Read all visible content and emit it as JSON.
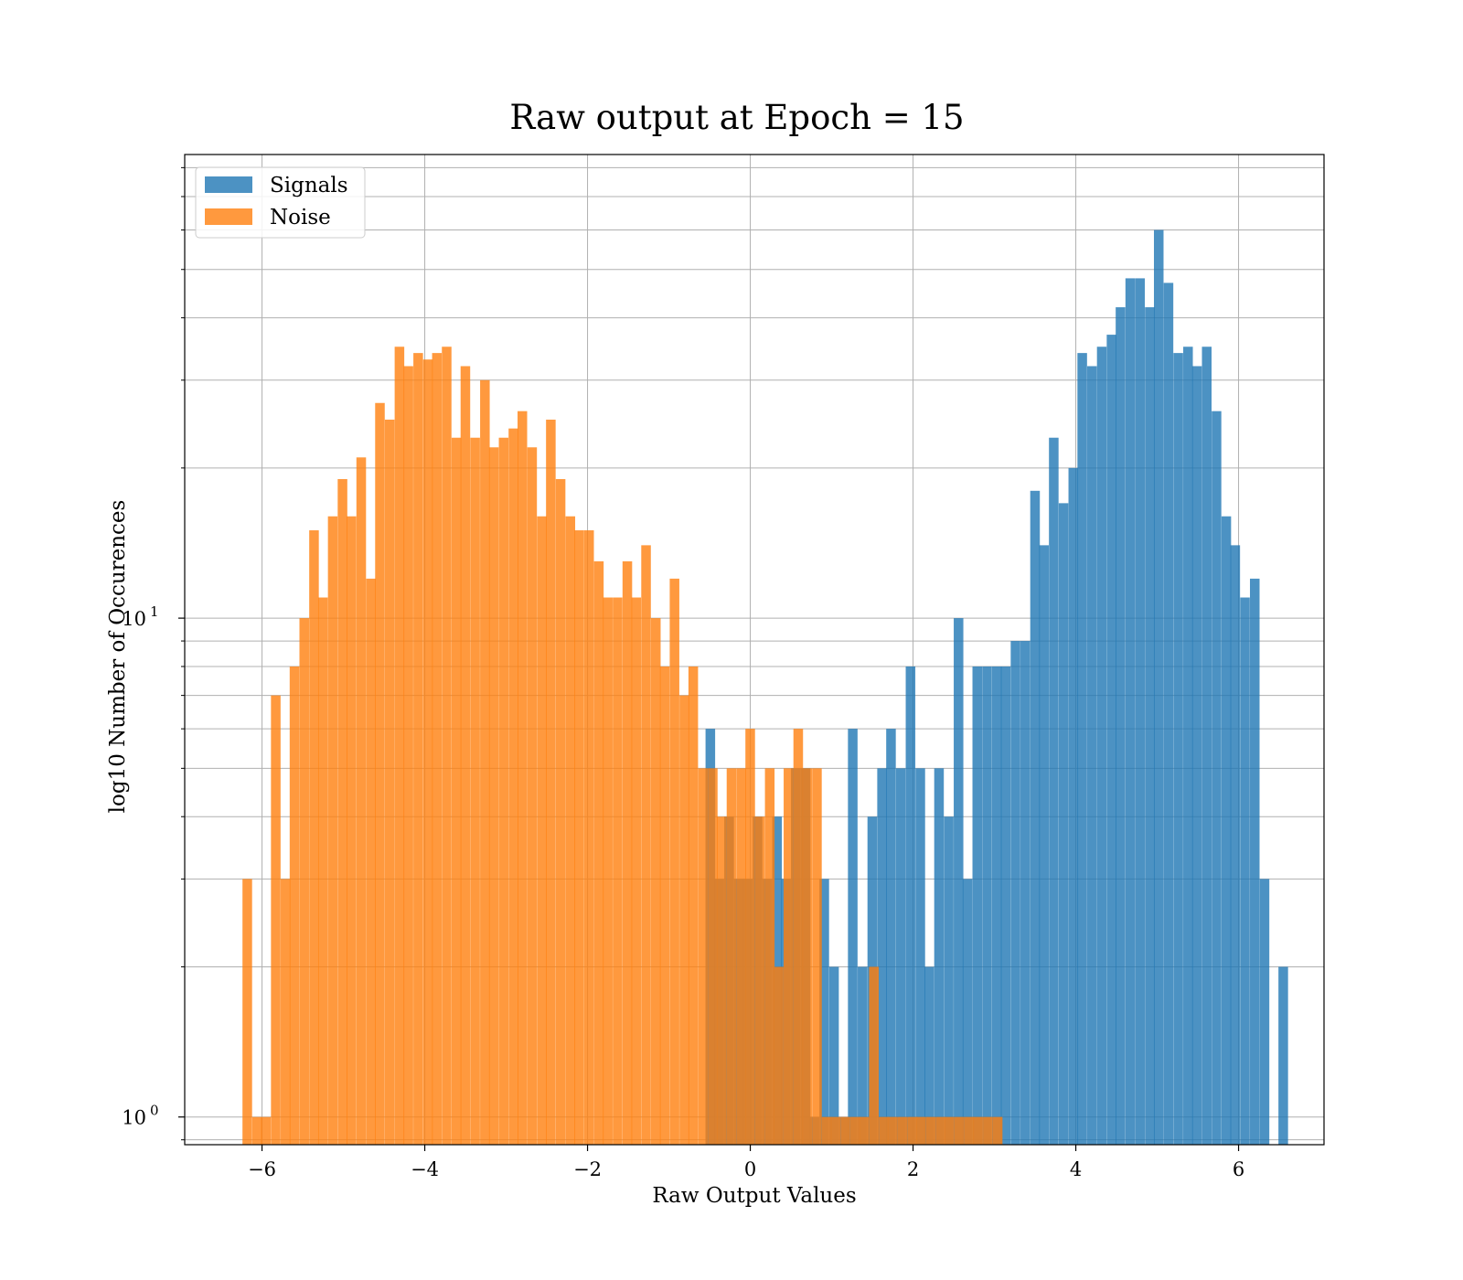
{
  "chart_data": {
    "type": "bar",
    "title": "Raw output at Epoch = 15",
    "xlabel": "Raw Output Values",
    "ylabel": "log10 Number of Occurences",
    "xlim": [
      -6.95,
      7.05
    ],
    "ylim": [
      0.88,
      85
    ],
    "y_scale": "log",
    "grid": true,
    "legend_position": "upper-left",
    "x_ticks": [
      -6,
      -4,
      -2,
      0,
      2,
      4,
      6
    ],
    "x_tick_labels": [
      "−6",
      "−4",
      "−2",
      "0",
      "2",
      "4",
      "6"
    ],
    "y_tick_labels": {
      "exp10_0": "0",
      "exp10_1": "1",
      "base": "10"
    },
    "colors": {
      "signals": "#1f77b4",
      "noise": "#ff7f0e",
      "grid": "#b0b0b0"
    },
    "series": [
      {
        "name": "Signals",
        "bin_width": 0.118,
        "bins": [
          [
            -0.55,
            6
          ],
          [
            -0.44,
            3
          ],
          [
            -0.32,
            4
          ],
          [
            -0.2,
            3
          ],
          [
            -0.09,
            3
          ],
          [
            0.03,
            4
          ],
          [
            0.15,
            3
          ],
          [
            0.27,
            4
          ],
          [
            0.38,
            3
          ],
          [
            0.5,
            5
          ],
          [
            0.62,
            5
          ],
          [
            0.73,
            1
          ],
          [
            0.85,
            3
          ],
          [
            0.97,
            2
          ],
          [
            1.09,
            1
          ],
          [
            1.2,
            6
          ],
          [
            1.32,
            2
          ],
          [
            1.44,
            4
          ],
          [
            1.56,
            5
          ],
          [
            1.67,
            6
          ],
          [
            1.79,
            5
          ],
          [
            1.91,
            8
          ],
          [
            2.03,
            5
          ],
          [
            2.14,
            2
          ],
          [
            2.26,
            5
          ],
          [
            2.38,
            4
          ],
          [
            2.5,
            10
          ],
          [
            2.61,
            3
          ],
          [
            2.73,
            8
          ],
          [
            2.85,
            8
          ],
          [
            2.97,
            8
          ],
          [
            3.08,
            8
          ],
          [
            3.2,
            9
          ],
          [
            3.32,
            9
          ],
          [
            3.44,
            18
          ],
          [
            3.55,
            14
          ],
          [
            3.67,
            23
          ],
          [
            3.79,
            17
          ],
          [
            3.91,
            20
          ],
          [
            4.02,
            34
          ],
          [
            4.14,
            32
          ],
          [
            4.26,
            35
          ],
          [
            4.38,
            37
          ],
          [
            4.49,
            42
          ],
          [
            4.61,
            48
          ],
          [
            4.73,
            48
          ],
          [
            4.85,
            42
          ],
          [
            4.96,
            60
          ],
          [
            5.08,
            47
          ],
          [
            5.2,
            34
          ],
          [
            5.32,
            35
          ],
          [
            5.43,
            32
          ],
          [
            5.55,
            35
          ],
          [
            5.67,
            26
          ],
          [
            5.79,
            16
          ],
          [
            5.9,
            14
          ],
          [
            6.02,
            11
          ],
          [
            6.14,
            12
          ],
          [
            6.26,
            3
          ],
          [
            6.37,
            0
          ],
          [
            6.49,
            2
          ]
        ]
      },
      {
        "name": "Noise",
        "bin_width": 0.118,
        "bins": [
          [
            -6.24,
            3
          ],
          [
            -6.12,
            1
          ],
          [
            -6.01,
            1
          ],
          [
            -5.89,
            7
          ],
          [
            -5.77,
            3
          ],
          [
            -5.66,
            8
          ],
          [
            -5.54,
            10
          ],
          [
            -5.42,
            15
          ],
          [
            -5.31,
            11
          ],
          [
            -5.19,
            16
          ],
          [
            -5.07,
            19
          ],
          [
            -4.96,
            16
          ],
          [
            -4.84,
            21
          ],
          [
            -4.72,
            12
          ],
          [
            -4.61,
            27
          ],
          [
            -4.49,
            25
          ],
          [
            -4.37,
            35
          ],
          [
            -4.26,
            32
          ],
          [
            -4.14,
            34
          ],
          [
            -4.02,
            33
          ],
          [
            -3.91,
            34
          ],
          [
            -3.79,
            35
          ],
          [
            -3.67,
            23
          ],
          [
            -3.56,
            32
          ],
          [
            -3.44,
            23
          ],
          [
            -3.32,
            30
          ],
          [
            -3.21,
            22
          ],
          [
            -3.09,
            23
          ],
          [
            -2.97,
            24
          ],
          [
            -2.86,
            26
          ],
          [
            -2.74,
            22
          ],
          [
            -2.62,
            16
          ],
          [
            -2.51,
            25
          ],
          [
            -2.39,
            19
          ],
          [
            -2.27,
            16
          ],
          [
            -2.16,
            15
          ],
          [
            -2.04,
            15
          ],
          [
            -1.92,
            13
          ],
          [
            -1.81,
            11
          ],
          [
            -1.69,
            11
          ],
          [
            -1.57,
            13
          ],
          [
            -1.46,
            11
          ],
          [
            -1.34,
            14
          ],
          [
            -1.22,
            10
          ],
          [
            -1.11,
            8
          ],
          [
            -0.99,
            12
          ],
          [
            -0.87,
            7
          ],
          [
            -0.76,
            8
          ],
          [
            -0.64,
            5
          ],
          [
            -0.52,
            5
          ],
          [
            -0.41,
            4
          ],
          [
            -0.29,
            5
          ],
          [
            -0.17,
            5
          ],
          [
            -0.06,
            6
          ],
          [
            0.06,
            4
          ],
          [
            0.18,
            5
          ],
          [
            0.29,
            2
          ],
          [
            0.41,
            5
          ],
          [
            0.53,
            6
          ],
          [
            0.64,
            5
          ],
          [
            0.76,
            5
          ],
          [
            0.88,
            1
          ],
          [
            0.99,
            1
          ],
          [
            1.11,
            1
          ],
          [
            1.23,
            1
          ],
          [
            1.34,
            1
          ],
          [
            1.46,
            2
          ],
          [
            1.58,
            1
          ],
          [
            1.69,
            1
          ],
          [
            1.81,
            1
          ],
          [
            1.93,
            1
          ],
          [
            2.04,
            1
          ],
          [
            2.16,
            1
          ],
          [
            2.28,
            1
          ],
          [
            2.39,
            1
          ],
          [
            2.51,
            1
          ],
          [
            2.63,
            1
          ],
          [
            2.74,
            1
          ],
          [
            2.86,
            1
          ],
          [
            2.98,
            1
          ]
        ]
      }
    ]
  },
  "overlap_color": "#d97f30"
}
